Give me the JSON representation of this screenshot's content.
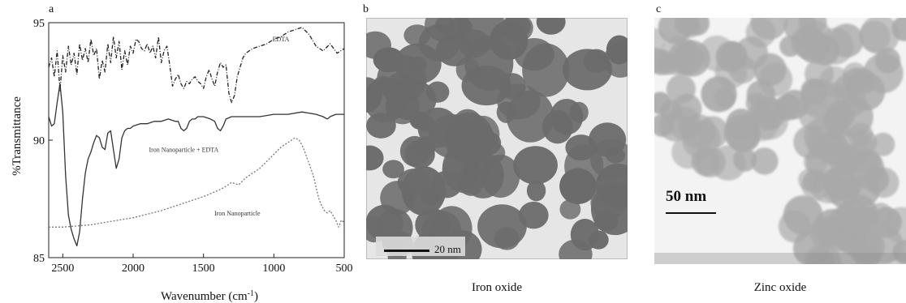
{
  "panels": {
    "a": {
      "letter": "a"
    },
    "b": {
      "letter": "b",
      "caption": "Iron oxide",
      "scale_label": "20 nm"
    },
    "c": {
      "letter": "c",
      "caption": "Zinc oxide",
      "scale_label": "50 nm"
    }
  },
  "chart_data": {
    "type": "line",
    "title": "",
    "xlabel": "Wavenumber (cm",
    "xlabel_sup": "-1",
    "xlabel_close": ")",
    "ylabel": "%Transmittance",
    "xlim": [
      2600,
      500
    ],
    "ylim": [
      85,
      95
    ],
    "xticks": [
      2500,
      2000,
      1500,
      1000,
      500
    ],
    "xtick_labels": [
      "2500",
      "2000",
      "1500",
      "1000",
      "500"
    ],
    "yticks": [
      85,
      90,
      95
    ],
    "ytick_labels": [
      "85",
      "90",
      "95"
    ],
    "grid": false,
    "series": [
      {
        "name": "EDTA",
        "color": "#222222",
        "style": "dashdot",
        "x": [
          2600,
          2580,
          2560,
          2540,
          2520,
          2500,
          2480,
          2460,
          2440,
          2420,
          2400,
          2380,
          2360,
          2340,
          2320,
          2300,
          2280,
          2260,
          2240,
          2220,
          2200,
          2180,
          2160,
          2140,
          2120,
          2100,
          2080,
          2060,
          2040,
          2020,
          2000,
          1980,
          1960,
          1940,
          1920,
          1900,
          1880,
          1860,
          1840,
          1820,
          1800,
          1780,
          1760,
          1740,
          1720,
          1700,
          1680,
          1660,
          1640,
          1620,
          1600,
          1580,
          1560,
          1540,
          1520,
          1500,
          1480,
          1460,
          1440,
          1420,
          1400,
          1380,
          1360,
          1340,
          1320,
          1300,
          1280,
          1260,
          1240,
          1220,
          1200,
          1150,
          1100,
          1050,
          1000,
          950,
          900,
          850,
          800,
          750,
          700,
          650,
          600,
          550,
          500
        ],
        "y": [
          93.1,
          93.5,
          92.7,
          93.8,
          92.1,
          93.6,
          92.9,
          94.0,
          93.2,
          93.7,
          92.8,
          94.1,
          93.4,
          93.9,
          93.3,
          94.3,
          93.6,
          93.9,
          92.6,
          93.4,
          92.9,
          94.1,
          93.3,
          94.4,
          93.5,
          94.2,
          93.0,
          93.8,
          93.2,
          94.0,
          93.7,
          94.3,
          94.2,
          93.9,
          93.8,
          94.1,
          93.7,
          94.0,
          93.5,
          94.4,
          93.3,
          93.8,
          94.0,
          93.2,
          92.3,
          92.6,
          92.8,
          92.4,
          92.2,
          92.5,
          92.4,
          92.6,
          92.7,
          92.5,
          92.4,
          92.2,
          92.7,
          93.0,
          92.6,
          92.3,
          92.9,
          93.3,
          93.1,
          93.2,
          92.0,
          91.6,
          91.9,
          92.7,
          93.1,
          93.5,
          93.7,
          93.9,
          94.0,
          94.1,
          94.3,
          94.4,
          94.6,
          94.7,
          94.8,
          94.5,
          94.0,
          93.8,
          94.1,
          93.7,
          93.9
        ]
      },
      {
        "name": "Iron Nanoparticle + EDTA",
        "color": "#333333",
        "style": "solid",
        "x": [
          2600,
          2580,
          2560,
          2540,
          2520,
          2500,
          2480,
          2460,
          2440,
          2420,
          2400,
          2380,
          2360,
          2340,
          2320,
          2300,
          2280,
          2260,
          2240,
          2220,
          2200,
          2180,
          2160,
          2140,
          2120,
          2100,
          2080,
          2060,
          2040,
          2020,
          2000,
          1950,
          1900,
          1850,
          1800,
          1750,
          1700,
          1680,
          1660,
          1640,
          1620,
          1600,
          1580,
          1560,
          1540,
          1500,
          1450,
          1420,
          1400,
          1380,
          1360,
          1340,
          1300,
          1200,
          1100,
          1000,
          900,
          800,
          700,
          650,
          620,
          600,
          560,
          500
        ],
        "y": [
          91.0,
          90.6,
          90.7,
          91.6,
          92.4,
          91.2,
          88.5,
          86.8,
          86.2,
          85.8,
          85.5,
          86.1,
          87.5,
          88.6,
          89.2,
          89.5,
          89.9,
          90.2,
          90.1,
          89.7,
          89.6,
          90.3,
          90.4,
          89.6,
          88.8,
          89.2,
          90.1,
          90.4,
          90.5,
          90.5,
          90.6,
          90.7,
          90.7,
          90.8,
          90.8,
          90.9,
          90.8,
          90.8,
          90.5,
          90.4,
          90.5,
          90.8,
          90.9,
          90.9,
          91.0,
          91.0,
          90.9,
          90.8,
          90.5,
          90.4,
          90.6,
          90.9,
          91.0,
          91.0,
          91.0,
          91.1,
          91.1,
          91.2,
          91.1,
          91.0,
          90.9,
          91.0,
          91.1,
          91.1
        ]
      },
      {
        "name": "Iron Nanoparticle",
        "color": "#777777",
        "style": "dotted",
        "x": [
          2600,
          2500,
          2400,
          2300,
          2200,
          2100,
          2000,
          1900,
          1800,
          1700,
          1600,
          1500,
          1400,
          1350,
          1300,
          1250,
          1200,
          1150,
          1100,
          1050,
          1000,
          950,
          900,
          850,
          820,
          800,
          780,
          750,
          720,
          700,
          680,
          660,
          640,
          620,
          600,
          580,
          560,
          540,
          520,
          500
        ],
        "y": [
          86.3,
          86.3,
          86.35,
          86.4,
          86.5,
          86.6,
          86.7,
          86.85,
          87.0,
          87.2,
          87.4,
          87.6,
          87.85,
          88.0,
          88.2,
          88.1,
          88.4,
          88.6,
          88.8,
          89.1,
          89.4,
          89.7,
          89.9,
          90.1,
          90.0,
          89.8,
          89.5,
          89.0,
          88.5,
          88.0,
          87.5,
          87.2,
          87.0,
          86.9,
          87.0,
          86.8,
          86.6,
          86.3,
          86.6,
          86.5
        ]
      }
    ],
    "annotations": [
      {
        "text": "EDTA",
        "x": 950,
        "y": 94.2
      },
      {
        "text": "Iron Nanoparticle + EDTA",
        "x": 1640,
        "y": 89.5
      },
      {
        "text": "Iron Nanoparticle",
        "x": 1260,
        "y": 86.8
      }
    ]
  },
  "colors": {
    "iron_bg": "#e6e6e6",
    "iron_particle": "#6b6b6b",
    "zinc_bg": "#f3f3f3",
    "zinc_particle": "#a9a9a9"
  }
}
